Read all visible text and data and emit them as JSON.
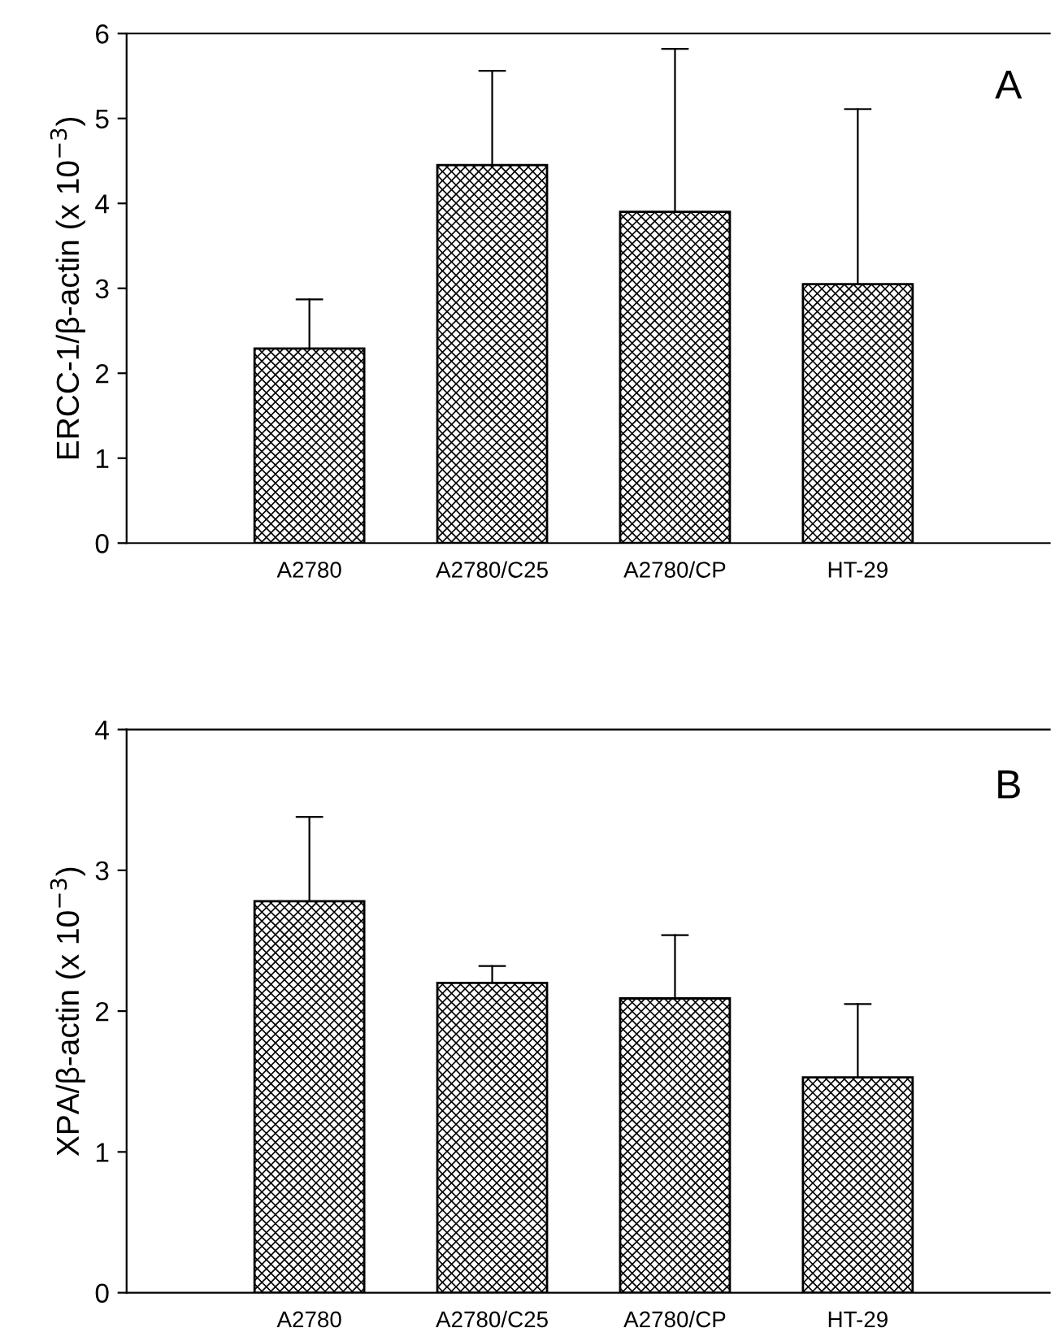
{
  "chart_data": [
    {
      "type": "bar",
      "categories": [
        "A2780",
        "A2780/C25",
        "A2780/CP",
        "HT-29"
      ],
      "values": [
        2.29,
        4.45,
        3.9,
        3.05
      ],
      "errors": [
        [
          2.29,
          2.87
        ],
        [
          4.45,
          5.56
        ],
        [
          3.9,
          5.82
        ],
        [
          3.05,
          5.11
        ]
      ],
      "color": "#000000",
      "ylabel": "ERCC-1/β-actin (x 10$^{−3}$)",
      "ylim": [
        0,
        6
      ],
      "yticks": [
        0,
        1,
        2,
        3,
        4,
        5,
        6
      ],
      "annotations": [
        "A"
      ],
      "grid": false,
      "legend": false
    },
    {
      "type": "bar",
      "categories": [
        "A2780",
        "A2780/C25",
        "A2780/CP",
        "HT-29"
      ],
      "values": [
        2.78,
        2.2,
        2.09,
        1.53
      ],
      "errors": [
        [
          2.78,
          3.38
        ],
        [
          2.2,
          2.32
        ],
        [
          2.09,
          2.54
        ],
        [
          1.53,
          2.05
        ]
      ],
      "color": "#000000",
      "ylabel": "XPA/β-actin (x 10$^{−3}$)",
      "ylim": [
        0,
        4
      ],
      "yticks": [
        0,
        1,
        2,
        3,
        4
      ],
      "annotations": [
        "B"
      ],
      "grid": false,
      "legend": false
    }
  ]
}
